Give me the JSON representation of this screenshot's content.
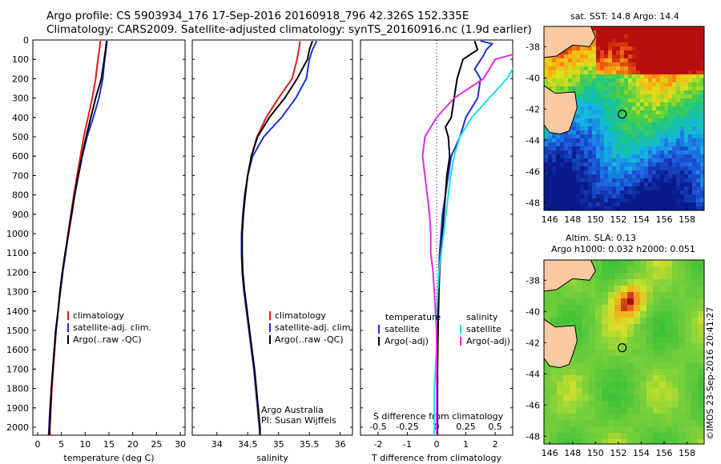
{
  "header": {
    "line1": "Argo profile: CS 5903934_176 17-Sep-2016 20160918_796 42.326S 152.335E",
    "line2": "Climatology: CARS2009. Satellite-adjusted climatology: synTS_20160916.nc (1.9d earlier)"
  },
  "colors": {
    "climatology": "#e31a1c",
    "satellite": "#1f2fd6",
    "argo": "#000000",
    "sal_satellite": "#22dddd",
    "sal_argo": "#e02be0"
  },
  "chart_data": [
    {
      "type": "line",
      "panel": "temperature",
      "xlabel": "temperature (deg C)",
      "ylabel": "",
      "xlim": [
        -1,
        31
      ],
      "ylim": [
        2050,
        0
      ],
      "xticks": [
        "0",
        "5",
        "10",
        "15",
        "20",
        "25",
        "30"
      ],
      "yticks": [
        "0",
        "100",
        "200",
        "300",
        "400",
        "500",
        "600",
        "700",
        "800",
        "900",
        "1000",
        "1100",
        "1200",
        "1300",
        "1400",
        "1500",
        "1600",
        "1700",
        "1800",
        "1900",
        "2000"
      ],
      "legend": {
        "position": "lower-left",
        "entries": [
          "climatology",
          "satellite-adj. clim.",
          "Argo(..raw -QC)"
        ]
      },
      "series": [
        {
          "name": "climatology",
          "color": "#e31a1c",
          "points": [
            [
              13.2,
              5
            ],
            [
              13.0,
              50
            ],
            [
              12.7,
              100
            ],
            [
              12.2,
              200
            ],
            [
              11.5,
              300
            ],
            [
              10.6,
              400
            ],
            [
              9.7,
              500
            ],
            [
              9.0,
              600
            ],
            [
              8.3,
              700
            ],
            [
              7.6,
              800
            ],
            [
              7.0,
              900
            ],
            [
              6.4,
              1000
            ],
            [
              5.8,
              1100
            ],
            [
              5.2,
              1200
            ],
            [
              4.7,
              1300
            ],
            [
              4.3,
              1400
            ],
            [
              3.9,
              1500
            ],
            [
              3.6,
              1600
            ],
            [
              3.3,
              1700
            ],
            [
              3.0,
              1800
            ],
            [
              2.8,
              1900
            ],
            [
              2.6,
              2000
            ],
            [
              2.6,
              2050
            ]
          ]
        },
        {
          "name": "satellite-adj. clim.",
          "color": "#1f2fd6",
          "points": [
            [
              14.6,
              5
            ],
            [
              14.4,
              50
            ],
            [
              14.1,
              100
            ],
            [
              13.7,
              200
            ],
            [
              12.9,
              300
            ],
            [
              11.7,
              400
            ],
            [
              10.4,
              500
            ],
            [
              9.4,
              600
            ],
            [
              8.6,
              700
            ],
            [
              7.8,
              800
            ],
            [
              7.2,
              900
            ],
            [
              6.5,
              1000
            ],
            [
              5.9,
              1100
            ],
            [
              5.3,
              1200
            ],
            [
              4.8,
              1300
            ],
            [
              4.3,
              1400
            ],
            [
              3.9,
              1500
            ],
            [
              3.5,
              1600
            ],
            [
              3.2,
              1700
            ],
            [
              2.9,
              1800
            ],
            [
              2.6,
              1900
            ],
            [
              2.4,
              2000
            ],
            [
              2.3,
              2050
            ]
          ]
        },
        {
          "name": "Argo(..raw -QC)",
          "color": "#000000",
          "points": [
            [
              14.5,
              5
            ],
            [
              14.3,
              50
            ],
            [
              14.0,
              100
            ],
            [
              13.4,
              200
            ],
            [
              12.2,
              300
            ],
            [
              11.2,
              400
            ],
            [
              10.2,
              500
            ],
            [
              9.3,
              600
            ],
            [
              8.5,
              700
            ],
            [
              7.8,
              800
            ],
            [
              7.1,
              900
            ],
            [
              6.5,
              1000
            ],
            [
              5.8,
              1100
            ],
            [
              5.2,
              1200
            ],
            [
              4.7,
              1300
            ],
            [
              4.3,
              1400
            ],
            [
              3.8,
              1500
            ],
            [
              3.5,
              1600
            ],
            [
              3.2,
              1700
            ],
            [
              2.9,
              1800
            ],
            [
              2.7,
              1900
            ],
            [
              2.5,
              2000
            ],
            [
              2.4,
              2050
            ]
          ]
        }
      ]
    },
    {
      "type": "line",
      "panel": "salinity",
      "xlabel": "salinity",
      "xlim": [
        33.6,
        36.2
      ],
      "ylim": [
        2050,
        0
      ],
      "xticks": [
        "34",
        "34.5",
        "35",
        "35.5",
        "36"
      ],
      "legend": {
        "position": "lower-left",
        "entries": [
          "climatology",
          "satellite-adj. clim.",
          "Argo(..raw -QC)"
        ]
      },
      "notes": [
        "Argo Australia",
        "PI: Susan Wijffels"
      ],
      "series": [
        {
          "name": "climatology",
          "color": "#e31a1c",
          "points": [
            [
              35.35,
              5
            ],
            [
              35.33,
              50
            ],
            [
              35.3,
              100
            ],
            [
              35.22,
              200
            ],
            [
              35.0,
              300
            ],
            [
              34.8,
              400
            ],
            [
              34.65,
              500
            ],
            [
              34.56,
              600
            ],
            [
              34.5,
              700
            ],
            [
              34.46,
              800
            ],
            [
              34.43,
              900
            ],
            [
              34.41,
              1000
            ],
            [
              34.4,
              1100
            ],
            [
              34.41,
              1200
            ],
            [
              34.44,
              1300
            ],
            [
              34.48,
              1400
            ],
            [
              34.52,
              1500
            ],
            [
              34.56,
              1600
            ],
            [
              34.6,
              1700
            ],
            [
              34.63,
              1800
            ],
            [
              34.66,
              1900
            ],
            [
              34.69,
              2000
            ],
            [
              34.7,
              2050
            ]
          ]
        },
        {
          "name": "satellite-adj. clim.",
          "color": "#1f2fd6",
          "points": [
            [
              35.62,
              5
            ],
            [
              35.55,
              50
            ],
            [
              35.5,
              100
            ],
            [
              35.45,
              200
            ],
            [
              35.28,
              300
            ],
            [
              35.05,
              400
            ],
            [
              34.76,
              500
            ],
            [
              34.58,
              600
            ],
            [
              34.5,
              700
            ],
            [
              34.45,
              800
            ],
            [
              34.42,
              900
            ],
            [
              34.4,
              1000
            ],
            [
              34.4,
              1100
            ],
            [
              34.41,
              1200
            ],
            [
              34.44,
              1300
            ],
            [
              34.48,
              1400
            ],
            [
              34.52,
              1500
            ],
            [
              34.56,
              1600
            ],
            [
              34.6,
              1700
            ],
            [
              34.63,
              1800
            ],
            [
              34.66,
              1900
            ],
            [
              34.69,
              2000
            ],
            [
              34.7,
              2050
            ]
          ]
        },
        {
          "name": "Argo(..raw -QC)",
          "color": "#000000",
          "points": [
            [
              35.55,
              5
            ],
            [
              35.5,
              50
            ],
            [
              35.47,
              100
            ],
            [
              35.3,
              200
            ],
            [
              35.1,
              300
            ],
            [
              34.85,
              400
            ],
            [
              34.66,
              500
            ],
            [
              34.56,
              600
            ],
            [
              34.5,
              700
            ],
            [
              34.46,
              800
            ],
            [
              34.43,
              900
            ],
            [
              34.41,
              1000
            ],
            [
              34.41,
              1100
            ],
            [
              34.42,
              1200
            ],
            [
              34.45,
              1300
            ],
            [
              34.49,
              1400
            ],
            [
              34.53,
              1500
            ],
            [
              34.57,
              1600
            ],
            [
              34.61,
              1700
            ],
            [
              34.64,
              1800
            ],
            [
              34.67,
              1900
            ],
            [
              34.7,
              2000
            ],
            [
              34.7,
              2050
            ]
          ]
        }
      ]
    },
    {
      "type": "line",
      "panel": "differences",
      "xlabel": "T difference from climatology",
      "xlabel_top": "S difference from climatology",
      "xlim": [
        -2.6,
        2.6
      ],
      "ylim": [
        2050,
        0
      ],
      "xticks": [
        "-2",
        "-1",
        "0",
        "1",
        "2"
      ],
      "xticks_top": [
        "-0.5",
        "-0.25",
        "0",
        "0.25",
        "0.5"
      ],
      "legend": {
        "position": "lower-center",
        "temperature_title": "temperature",
        "salinity_title": "salinity",
        "entries": [
          "satellite",
          "Argo(-adj)",
          "satellite",
          "Argo(-adj)"
        ]
      },
      "series": [
        {
          "name": "satellite",
          "kind": "temperature",
          "color": "#1f2fd6",
          "points": [
            [
              1.5,
              5
            ],
            [
              1.9,
              20
            ],
            [
              1.7,
              50
            ],
            [
              1.6,
              80
            ],
            [
              1.3,
              150
            ],
            [
              1.5,
              200
            ],
            [
              1.4,
              300
            ],
            [
              1.0,
              400
            ],
            [
              0.8,
              500
            ],
            [
              0.5,
              600
            ],
            [
              0.4,
              700
            ],
            [
              0.3,
              800
            ],
            [
              0.2,
              900
            ],
            [
              0.15,
              1000
            ],
            [
              0.1,
              1100
            ],
            [
              0.08,
              1200
            ],
            [
              0.05,
              1400
            ],
            [
              0.03,
              1600
            ],
            [
              0.02,
              1800
            ],
            [
              0.02,
              2050
            ]
          ]
        },
        {
          "name": "Argo(-adj)",
          "kind": "temperature",
          "color": "#000000",
          "points": [
            [
              1.3,
              5
            ],
            [
              1.4,
              50
            ],
            [
              0.9,
              100
            ],
            [
              0.7,
              200
            ],
            [
              0.6,
              300
            ],
            [
              0.5,
              400
            ],
            [
              0.3,
              450
            ],
            [
              0.4,
              500
            ],
            [
              0.45,
              600
            ],
            [
              0.35,
              700
            ],
            [
              0.3,
              800
            ],
            [
              0.25,
              900
            ],
            [
              0.2,
              1000
            ],
            [
              0.15,
              1100
            ],
            [
              0.1,
              1200
            ],
            [
              0.08,
              1300
            ],
            [
              0.05,
              1500
            ],
            [
              0.03,
              1700
            ],
            [
              0.03,
              2050
            ]
          ]
        },
        {
          "name": "satellite",
          "kind": "salinity",
          "color": "#22dddd",
          "points": [
            [
              0.8,
              5
            ],
            [
              0.9,
              30
            ],
            [
              0.75,
              60
            ],
            [
              0.7,
              100
            ],
            [
              0.6,
              200
            ],
            [
              0.45,
              300
            ],
            [
              0.3,
              400
            ],
            [
              0.2,
              500
            ],
            [
              0.15,
              600
            ],
            [
              0.12,
              700
            ],
            [
              0.1,
              800
            ],
            [
              0.08,
              900
            ],
            [
              0.06,
              1000
            ],
            [
              0.04,
              1100
            ],
            [
              0.02,
              1200
            ],
            [
              0.0,
              1400
            ],
            [
              0.0,
              1600
            ],
            [
              -0.02,
              1800
            ],
            [
              -0.02,
              2050
            ]
          ]
        },
        {
          "name": "Argo(-adj)",
          "kind": "salinity",
          "color": "#e02be0",
          "points": [
            [
              0.7,
              5
            ],
            [
              0.8,
              50
            ],
            [
              0.5,
              100
            ],
            [
              0.4,
              200
            ],
            [
              0.15,
              300
            ],
            [
              0.0,
              400
            ],
            [
              -0.1,
              500
            ],
            [
              -0.12,
              600
            ],
            [
              -0.1,
              700
            ],
            [
              -0.08,
              800
            ],
            [
              -0.06,
              900
            ],
            [
              -0.05,
              1000
            ],
            [
              -0.05,
              1100
            ],
            [
              -0.03,
              1200
            ],
            [
              -0.02,
              1300
            ],
            [
              0.0,
              1500
            ],
            [
              0.0,
              1700
            ],
            [
              0.0,
              2050
            ]
          ]
        }
      ]
    },
    {
      "type": "heatmap",
      "panel": "sst-map",
      "title": "sat. SST: 14.8  Argo: 14.4",
      "xlim": [
        145.5,
        159.5
      ],
      "ylim": [
        -48.5,
        -36.7
      ],
      "xticks": [
        "146",
        "148",
        "150",
        "152",
        "154",
        "156",
        "158"
      ],
      "yticks": [
        "-38",
        "-40",
        "-42",
        "-44",
        "-46",
        "-48"
      ],
      "marker": {
        "lon": 152.335,
        "lat": -42.326
      }
    },
    {
      "type": "heatmap",
      "panel": "sla-map",
      "title_line1": "Altim. SLA: 0.13",
      "title_line2": "Argo h1000: 0.032 h2000: 0.051",
      "xlim": [
        145.5,
        159.5
      ],
      "ylim": [
        -48.5,
        -36.7
      ],
      "xticks": [
        "146",
        "148",
        "150",
        "152",
        "154",
        "156",
        "158"
      ],
      "yticks": [
        "-38",
        "-40",
        "-42",
        "-44",
        "-46",
        "-48"
      ],
      "marker": {
        "lon": 152.335,
        "lat": -42.326
      }
    }
  ],
  "footer": {
    "stamp": "©IMOS 23-Sep-2016 20:41:27"
  }
}
